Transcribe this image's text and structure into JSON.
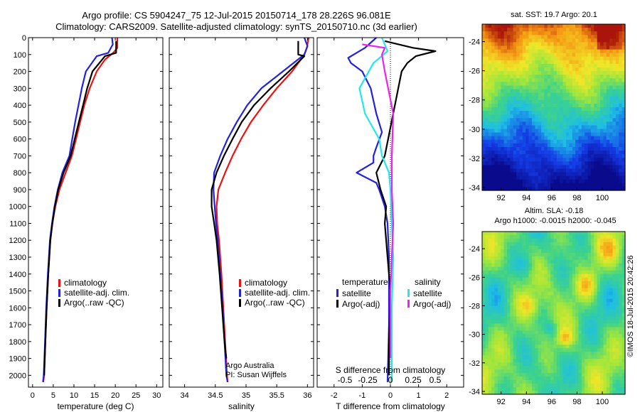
{
  "title": {
    "line1": "Argo profile: CS 5904247_75 12-Jul-2015 20150714_178 28.226S 96.081E",
    "line2": "Climatology: CARS2009. Satellite-adjusted climatology: synTS_20150710.nc (3d earlier)"
  },
  "side_label": "©IMOS 18-Jul-2015 20:42:26",
  "colors": {
    "climatology": "#ee1111",
    "satellite": "#2222dd",
    "argo": "#000000",
    "sat_salinity": "#22e8e8",
    "argo_salinity": "#ee22ee"
  },
  "chart_data": [
    {
      "type": "line",
      "panel": "temperature",
      "xlabel": "temperature (deg C)",
      "ylabel": "",
      "xlim": [
        -1,
        31.5
      ],
      "ylim": [
        2070,
        0
      ],
      "xticks": [
        0,
        5,
        10,
        15,
        20,
        25,
        30
      ],
      "yticks": [
        0,
        100,
        200,
        300,
        400,
        500,
        600,
        700,
        800,
        900,
        1000,
        1100,
        1200,
        1300,
        1400,
        1500,
        1600,
        1700,
        1800,
        1900,
        2000
      ],
      "legend": [
        "climatology",
        "satellite-adj. clim.",
        "Argo(..raw -QC)"
      ],
      "series": [
        {
          "name": "climatology",
          "color": "#ee1111",
          "points": [
            [
              20.5,
              0
            ],
            [
              20.5,
              60
            ],
            [
              19.5,
              90
            ],
            [
              17.5,
              130
            ],
            [
              15.5,
              200
            ],
            [
              13.8,
              300
            ],
            [
              12.5,
              400
            ],
            [
              11.5,
              500
            ],
            [
              10.5,
              600
            ],
            [
              9.5,
              700
            ],
            [
              8,
              800
            ],
            [
              6.5,
              900
            ],
            [
              5.5,
              1000
            ],
            [
              4.8,
              1100
            ],
            [
              4.3,
              1200
            ],
            [
              3.8,
              1400
            ],
            [
              3.4,
              1600
            ],
            [
              3.1,
              1800
            ],
            [
              2.8,
              2000
            ],
            [
              2.6,
              2040
            ]
          ]
        },
        {
          "name": "satellite-adj. clim.",
          "color": "#2222dd",
          "points": [
            [
              19.2,
              0
            ],
            [
              19.4,
              40
            ],
            [
              18.3,
              90
            ],
            [
              15.5,
              110
            ],
            [
              12.9,
              200
            ],
            [
              11.9,
              300
            ],
            [
              11.1,
              400
            ],
            [
              10.3,
              500
            ],
            [
              9.6,
              600
            ],
            [
              8.9,
              700
            ],
            [
              7.2,
              800
            ],
            [
              6.1,
              900
            ],
            [
              5.3,
              1000
            ],
            [
              4.7,
              1100
            ],
            [
              4.2,
              1200
            ],
            [
              3.7,
              1400
            ],
            [
              3.3,
              1600
            ],
            [
              3,
              1800
            ],
            [
              2.7,
              2000
            ],
            [
              2.5,
              2040
            ]
          ]
        },
        {
          "name": "Argo(..raw -QC)",
          "color": "#000000",
          "points": [
            [
              20.2,
              20
            ],
            [
              20.2,
              90
            ],
            [
              17.5,
              110
            ],
            [
              14.5,
              200
            ],
            [
              13.2,
              300
            ],
            [
              12.2,
              400
            ],
            [
              11.2,
              500
            ],
            [
              10.2,
              600
            ],
            [
              9.2,
              700
            ],
            [
              7.5,
              800
            ],
            [
              6.2,
              900
            ],
            [
              5.4,
              1000
            ],
            [
              4.8,
              1100
            ],
            [
              4.3,
              1200
            ],
            [
              3.8,
              1400
            ],
            [
              3.4,
              1600
            ],
            [
              3.1,
              1800
            ],
            [
              2.8,
              2000
            ]
          ]
        }
      ]
    },
    {
      "type": "line",
      "panel": "salinity",
      "xlabel": "salinity",
      "ylabel": "",
      "xlim": [
        33.75,
        36.1
      ],
      "ylim": [
        2070,
        0
      ],
      "xticks": [
        34,
        34.5,
        35,
        35.5,
        36
      ],
      "legend": [
        "climatology",
        "satellite-adj. clim.",
        "Argo(..raw -QC)"
      ],
      "annotations": [
        "Argo Australia",
        "PI: Susan Wijffels"
      ],
      "series": [
        {
          "name": "climatology",
          "color": "#ee1111",
          "points": [
            [
              36.02,
              0
            ],
            [
              35.99,
              60
            ],
            [
              35.95,
              100
            ],
            [
              35.75,
              200
            ],
            [
              35.5,
              300
            ],
            [
              35.28,
              400
            ],
            [
              35.08,
              500
            ],
            [
              34.92,
              600
            ],
            [
              34.78,
              700
            ],
            [
              34.66,
              800
            ],
            [
              34.55,
              900
            ],
            [
              34.52,
              1000
            ],
            [
              34.53,
              1100
            ],
            [
              34.56,
              1200
            ],
            [
              34.6,
              1400
            ],
            [
              34.63,
              1600
            ],
            [
              34.66,
              1800
            ],
            [
              34.69,
              2000
            ],
            [
              34.7,
              2040
            ]
          ]
        },
        {
          "name": "satellite-adj. clim.",
          "color": "#2222dd",
          "points": [
            [
              35.95,
              0
            ],
            [
              36,
              50
            ],
            [
              35.95,
              100
            ],
            [
              35.6,
              200
            ],
            [
              35.25,
              300
            ],
            [
              35.02,
              400
            ],
            [
              34.85,
              500
            ],
            [
              34.7,
              600
            ],
            [
              34.58,
              700
            ],
            [
              34.48,
              800
            ],
            [
              34.47,
              900
            ],
            [
              34.49,
              1000
            ],
            [
              34.51,
              1100
            ],
            [
              34.54,
              1200
            ],
            [
              34.58,
              1400
            ],
            [
              34.62,
              1600
            ],
            [
              34.65,
              1800
            ],
            [
              34.68,
              2000
            ],
            [
              34.7,
              2040
            ]
          ]
        },
        {
          "name": "Argo(..raw -QC)",
          "color": "#000000",
          "points": [
            [
              35.85,
              20
            ],
            [
              35.85,
              100
            ],
            [
              35.95,
              110
            ],
            [
              35.7,
              200
            ],
            [
              35.4,
              300
            ],
            [
              35.13,
              400
            ],
            [
              34.93,
              500
            ],
            [
              34.78,
              600
            ],
            [
              34.64,
              700
            ],
            [
              34.52,
              800
            ],
            [
              34.44,
              900
            ],
            [
              34.44,
              1000
            ],
            [
              34.48,
              1100
            ],
            [
              34.52,
              1200
            ],
            [
              34.57,
              1400
            ],
            [
              34.61,
              1600
            ],
            [
              34.65,
              1800
            ],
            [
              34.68,
              1900
            ]
          ]
        }
      ]
    },
    {
      "type": "line",
      "panel": "difference",
      "xlabel": "T difference from climatology",
      "x2label": "S difference from climatology",
      "xlim": [
        -2.6,
        2.6
      ],
      "ylim": [
        2070,
        0
      ],
      "xticks": [
        -2,
        -1,
        0,
        1,
        2
      ],
      "x2ticks": [
        "-0.5",
        "-0.25",
        "0",
        "0.25",
        "0.5"
      ],
      "legend_groups": [
        {
          "title": "temperature",
          "entries": [
            "satellite",
            "Argo(-adj)"
          ]
        },
        {
          "title": "salinity",
          "entries": [
            "satellite",
            "Argo(-adj)"
          ]
        }
      ],
      "series": [
        {
          "name": "temperature satellite",
          "color": "#2222dd",
          "points": [
            [
              -0.5,
              0
            ],
            [
              -0.9,
              60
            ],
            [
              -1.5,
              120
            ],
            [
              -1.4,
              150
            ],
            [
              -1.0,
              200
            ],
            [
              -0.7,
              300
            ],
            [
              -0.5,
              450
            ],
            [
              -0.3,
              560
            ],
            [
              -0.5,
              650
            ],
            [
              -0.6,
              700
            ],
            [
              -0.6,
              740
            ],
            [
              -1.2,
              800
            ],
            [
              -0.5,
              860
            ],
            [
              -0.4,
              900
            ],
            [
              -0.2,
              1000
            ],
            [
              -0.1,
              1100
            ],
            [
              -0.05,
              1300
            ],
            [
              -0.05,
              1700
            ],
            [
              -0.1,
              2040
            ]
          ]
        },
        {
          "name": "temperature Argo(-adj)",
          "color": "#000000",
          "points": [
            [
              -0.2,
              20
            ],
            [
              0.8,
              60
            ],
            [
              1.6,
              80
            ],
            [
              0.9,
              110
            ],
            [
              0.6,
              150
            ],
            [
              0.4,
              200
            ],
            [
              -0.2,
              700
            ],
            [
              -0.5,
              800
            ],
            [
              -0.35,
              900
            ],
            [
              -0.15,
              1000
            ],
            [
              -0.2,
              1100
            ],
            [
              -0.1,
              1300
            ],
            [
              0,
              1500
            ],
            [
              -0.05,
              1800
            ],
            [
              -0.05,
              2000
            ]
          ]
        },
        {
          "name": "salinity satellite",
          "color": "#22e8e8",
          "points": [
            [
              -0.3,
              0
            ],
            [
              -0.1,
              80
            ],
            [
              -0.6,
              150
            ],
            [
              -1.1,
              300
            ],
            [
              -0.9,
              450
            ],
            [
              -0.4,
              600
            ],
            [
              -0.3,
              700
            ],
            [
              -0.05,
              800
            ],
            [
              0.0,
              900
            ],
            [
              0.05,
              1100
            ],
            [
              0.1,
              1300
            ],
            [
              0.05,
              1600
            ],
            [
              0.05,
              2040
            ]
          ]
        },
        {
          "name": "salinity Argo(-adj)",
          "color": "#ee22ee",
          "points": [
            [
              -1.0,
              40
            ],
            [
              -0.2,
              60
            ],
            [
              -0.3,
              100
            ],
            [
              -0.2,
              200
            ],
            [
              0.1,
              450
            ],
            [
              0.05,
              700
            ],
            [
              0.05,
              900
            ],
            [
              0.1,
              1100
            ],
            [
              0.05,
              1300
            ],
            [
              0.0,
              1500
            ],
            [
              0.0,
              1900
            ]
          ]
        }
      ]
    },
    {
      "type": "heatmap",
      "panel": "SST map",
      "title": "sat. SST: 19.7 Argo: 20.1",
      "xticks": [
        92,
        94,
        96,
        98,
        100
      ],
      "yticks": [
        -24,
        -26,
        -28,
        -30,
        -32,
        -34
      ],
      "xlim": [
        90.5,
        101.8
      ],
      "ylim": [
        -34.2,
        -22.8
      ]
    },
    {
      "type": "heatmap",
      "panel": "SLA map",
      "title": "Altim. SLA: -0.18",
      "subtitle": "Argo h1000: -0.0015 h2000: -0.045",
      "xticks": [
        92,
        94,
        96,
        98,
        100
      ],
      "yticks": [
        -24,
        -26,
        -28,
        -30,
        -32,
        -34
      ],
      "xlim": [
        90.5,
        101.8
      ],
      "ylim": [
        -34.2,
        -22.8
      ]
    }
  ]
}
